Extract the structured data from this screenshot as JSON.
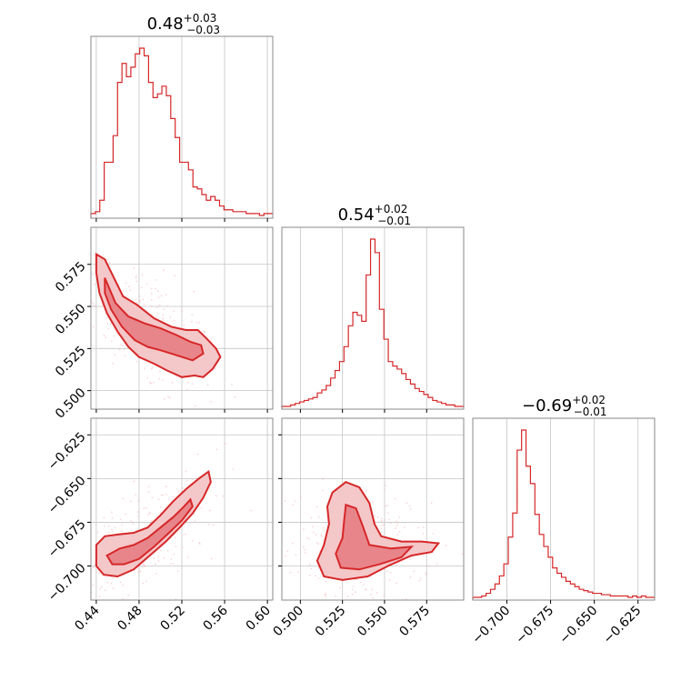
{
  "chart_data": {
    "type": "corner",
    "color": "#d62728",
    "parameters": [
      {
        "title": {
          "median": "0.48",
          "plus": "+0.03",
          "minus": "−0.03"
        },
        "range": [
          0.435,
          0.605
        ],
        "ticks": [
          {
            "v": 0.44,
            "label": "0.44"
          },
          {
            "v": 0.48,
            "label": "0.48"
          },
          {
            "v": 0.52,
            "label": "0.52"
          },
          {
            "v": 0.56,
            "label": "0.56"
          },
          {
            "v": 0.6,
            "label": "0.60"
          }
        ],
        "hist": [
          1,
          2,
          8,
          28,
          28,
          42,
          70,
          80,
          73,
          78,
          85,
          88,
          84,
          70,
          62,
          64,
          68,
          63,
          51,
          41,
          28,
          28,
          24,
          15,
          14,
          11,
          8,
          10,
          8,
          5,
          3,
          3,
          2,
          2,
          2,
          1,
          1,
          1,
          0,
          1,
          1
        ]
      },
      {
        "title": {
          "median": "0.54",
          "plus": "+0.02",
          "minus": "−0.01"
        },
        "range": [
          0.489,
          0.597
        ],
        "ticks": [
          {
            "v": 0.5,
            "label": "0.500"
          },
          {
            "v": 0.525,
            "label": "0.525"
          },
          {
            "v": 0.55,
            "label": "0.550"
          },
          {
            "v": 0.575,
            "label": "0.575"
          }
        ],
        "hist": [
          0,
          0,
          1,
          2,
          3,
          4,
          5,
          6,
          9,
          11,
          14,
          19,
          24,
          30,
          40,
          54,
          63,
          61,
          57,
          88,
          112,
          103,
          65,
          45,
          30,
          27,
          25,
          22,
          18,
          15,
          12,
          10,
          8,
          6,
          4,
          3,
          2,
          1,
          1,
          0,
          0
        ]
      },
      {
        "title": {
          "median": "−0.69",
          "plus": "+0.02",
          "minus": "−0.01"
        },
        "range": [
          -0.7195,
          -0.6155
        ],
        "ticks": [
          {
            "v": -0.7,
            "label": "−0.700"
          },
          {
            "v": -0.675,
            "label": "−0.675"
          },
          {
            "v": -0.65,
            "label": "−0.650"
          },
          {
            "v": -0.625,
            "label": "−0.625"
          }
        ],
        "hist": [
          0,
          0,
          1,
          3,
          6,
          10,
          16,
          25,
          45,
          63,
          110,
          125,
          98,
          85,
          62,
          47,
          38,
          30,
          22,
          18,
          15,
          12,
          10,
          8,
          6,
          5,
          4,
          3,
          3,
          2,
          2,
          1,
          1,
          1,
          1,
          0,
          1,
          0,
          1,
          0,
          0
        ]
      }
    ],
    "density_2d": [
      {
        "x": 0,
        "y": 1,
        "outer": [
          [
            0.44,
            0.581
          ],
          [
            0.448,
            0.578
          ],
          [
            0.455,
            0.569
          ],
          [
            0.465,
            0.556
          ],
          [
            0.478,
            0.551
          ],
          [
            0.494,
            0.543
          ],
          [
            0.51,
            0.538
          ],
          [
            0.524,
            0.536
          ],
          [
            0.535,
            0.536
          ],
          [
            0.543,
            0.531
          ],
          [
            0.552,
            0.525
          ],
          [
            0.556,
            0.52
          ],
          [
            0.549,
            0.513
          ],
          [
            0.54,
            0.508
          ],
          [
            0.532,
            0.509
          ],
          [
            0.52,
            0.508
          ],
          [
            0.506,
            0.512
          ],
          [
            0.494,
            0.516
          ],
          [
            0.48,
            0.52
          ],
          [
            0.47,
            0.526
          ],
          [
            0.46,
            0.535
          ],
          [
            0.45,
            0.546
          ],
          [
            0.443,
            0.558
          ],
          [
            0.44,
            0.57
          ]
        ],
        "inner": [
          [
            0.448,
            0.567
          ],
          [
            0.458,
            0.552
          ],
          [
            0.47,
            0.544
          ],
          [
            0.485,
            0.54
          ],
          [
            0.5,
            0.537
          ],
          [
            0.515,
            0.533
          ],
          [
            0.528,
            0.529
          ],
          [
            0.538,
            0.527
          ],
          [
            0.54,
            0.522
          ],
          [
            0.53,
            0.518
          ],
          [
            0.515,
            0.521
          ],
          [
            0.5,
            0.524
          ],
          [
            0.488,
            0.526
          ],
          [
            0.476,
            0.53
          ],
          [
            0.464,
            0.538
          ],
          [
            0.454,
            0.548
          ],
          [
            0.448,
            0.558
          ]
        ],
        "center": [
          0.48,
          0.54
        ],
        "spread": [
          0.025,
          0.012
        ],
        "slope": -0.45
      },
      {
        "x": 0,
        "y": 2,
        "outer": [
          [
            0.44,
            -0.688
          ],
          [
            0.448,
            -0.683
          ],
          [
            0.46,
            -0.682
          ],
          [
            0.475,
            -0.681
          ],
          [
            0.488,
            -0.678
          ],
          [
            0.5,
            -0.671
          ],
          [
            0.512,
            -0.663
          ],
          [
            0.524,
            -0.656
          ],
          [
            0.536,
            -0.65
          ],
          [
            0.545,
            -0.646
          ],
          [
            0.547,
            -0.652
          ],
          [
            0.54,
            -0.661
          ],
          [
            0.53,
            -0.67
          ],
          [
            0.518,
            -0.678
          ],
          [
            0.505,
            -0.686
          ],
          [
            0.49,
            -0.694
          ],
          [
            0.475,
            -0.702
          ],
          [
            0.46,
            -0.706
          ],
          [
            0.447,
            -0.705
          ],
          [
            0.44,
            -0.7
          ]
        ],
        "inner": [
          [
            0.45,
            -0.694
          ],
          [
            0.462,
            -0.69
          ],
          [
            0.475,
            -0.688
          ],
          [
            0.488,
            -0.684
          ],
          [
            0.5,
            -0.678
          ],
          [
            0.512,
            -0.672
          ],
          [
            0.522,
            -0.666
          ],
          [
            0.528,
            -0.662
          ],
          [
            0.53,
            -0.666
          ],
          [
            0.52,
            -0.674
          ],
          [
            0.508,
            -0.681
          ],
          [
            0.494,
            -0.689
          ],
          [
            0.48,
            -0.696
          ],
          [
            0.466,
            -0.699
          ],
          [
            0.455,
            -0.699
          ]
        ],
        "center": [
          0.48,
          -0.688
        ],
        "spread": [
          0.025,
          0.01
        ],
        "slope": 0.35
      },
      {
        "x": 1,
        "y": 2,
        "outer": [
          [
            0.519,
            -0.658
          ],
          [
            0.527,
            -0.652
          ],
          [
            0.535,
            -0.655
          ],
          [
            0.541,
            -0.664
          ],
          [
            0.544,
            -0.676
          ],
          [
            0.548,
            -0.683
          ],
          [
            0.56,
            -0.686
          ],
          [
            0.572,
            -0.686
          ],
          [
            0.582,
            -0.687
          ],
          [
            0.578,
            -0.692
          ],
          [
            0.566,
            -0.694
          ],
          [
            0.552,
            -0.7
          ],
          [
            0.54,
            -0.706
          ],
          [
            0.525,
            -0.708
          ],
          [
            0.514,
            -0.706
          ],
          [
            0.51,
            -0.697
          ],
          [
            0.514,
            -0.688
          ],
          [
            0.517,
            -0.676
          ],
          [
            0.516,
            -0.666
          ]
        ],
        "inner": [
          [
            0.527,
            -0.665
          ],
          [
            0.533,
            -0.667
          ],
          [
            0.537,
            -0.677
          ],
          [
            0.541,
            -0.688
          ],
          [
            0.554,
            -0.69
          ],
          [
            0.566,
            -0.689
          ],
          [
            0.56,
            -0.695
          ],
          [
            0.547,
            -0.699
          ],
          [
            0.535,
            -0.702
          ],
          [
            0.524,
            -0.701
          ],
          [
            0.521,
            -0.693
          ],
          [
            0.525,
            -0.684
          ],
          [
            0.526,
            -0.674
          ]
        ],
        "center": [
          0.535,
          -0.69
        ],
        "spread": [
          0.014,
          0.011
        ],
        "slope": 0
      }
    ]
  }
}
